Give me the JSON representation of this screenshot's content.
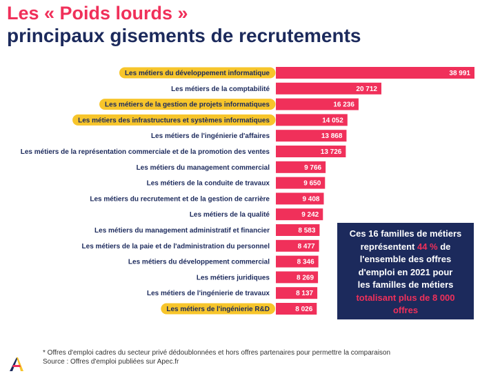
{
  "header": {
    "title_line1": "Les « Poids lourds »",
    "title_line2": "principaux gisements de recrutements"
  },
  "chart_data": {
    "type": "bar",
    "orientation": "horizontal",
    "categories": [
      "Les métiers du développement informatique",
      "Les métiers de la comptabilité",
      "Les métiers de la gestion de projets informatiques",
      "Les métiers des infrastructures et systèmes informatiques",
      "Les métiers de l'ingénierie d'affaires",
      "Les métiers de la représentation commerciale et de la promotion des ventes",
      "Les métiers du management commercial",
      "Les métiers de la conduite de travaux",
      "Les métiers du recrutement et de la gestion de carrière",
      "Les métiers de la qualité",
      "Les métiers du management administratif et financier",
      "Les métiers de la paie et de l'administration du personnel",
      "Les métiers du développement commercial",
      "Les métiers juridiques",
      "Les métiers de l'ingénierie de travaux",
      "Les métiers de l'ingénierie R&D"
    ],
    "values": [
      38991,
      20712,
      16236,
      14052,
      13868,
      13726,
      9766,
      9650,
      9408,
      9242,
      8583,
      8477,
      8346,
      8269,
      8137,
      8026
    ],
    "value_labels": [
      "38 991",
      "20 712",
      "16 236",
      "14 052",
      "13 868",
      "13 726",
      "9 766",
      "9 650",
      "9 408",
      "9 242",
      "8 583",
      "8 477",
      "8 346",
      "8 269",
      "8 137",
      "8 026"
    ],
    "highlighted": [
      true,
      false,
      true,
      true,
      false,
      false,
      false,
      false,
      false,
      false,
      false,
      false,
      false,
      false,
      false,
      true
    ],
    "bar_color": "#f0305a",
    "highlight_color": "#f7c52b",
    "label_color": "#1c2a5c",
    "xlim": [
      0,
      38991
    ]
  },
  "callout": {
    "line1": "Ces 16 familles de métiers",
    "line2a": "représentent ",
    "line2b": "44 %",
    "line2c": " de",
    "line3": "l'ensemble des offres",
    "line4": "d'emploi en 2021 pour",
    "line5": "les familles de métiers",
    "line6": "totalisant plus de 8 000",
    "line7": "offres",
    "background": "#1c2a5c",
    "accent": "#f0305a"
  },
  "footer": {
    "note": "* Offres d'emploi cadres du secteur privé dédoublonnées et hors offres partenaires pour permettre la comparaison",
    "source": "Source : Offres d'emploi publiées sur Apec.fr",
    "logo_icon": "apec-logo-icon"
  }
}
